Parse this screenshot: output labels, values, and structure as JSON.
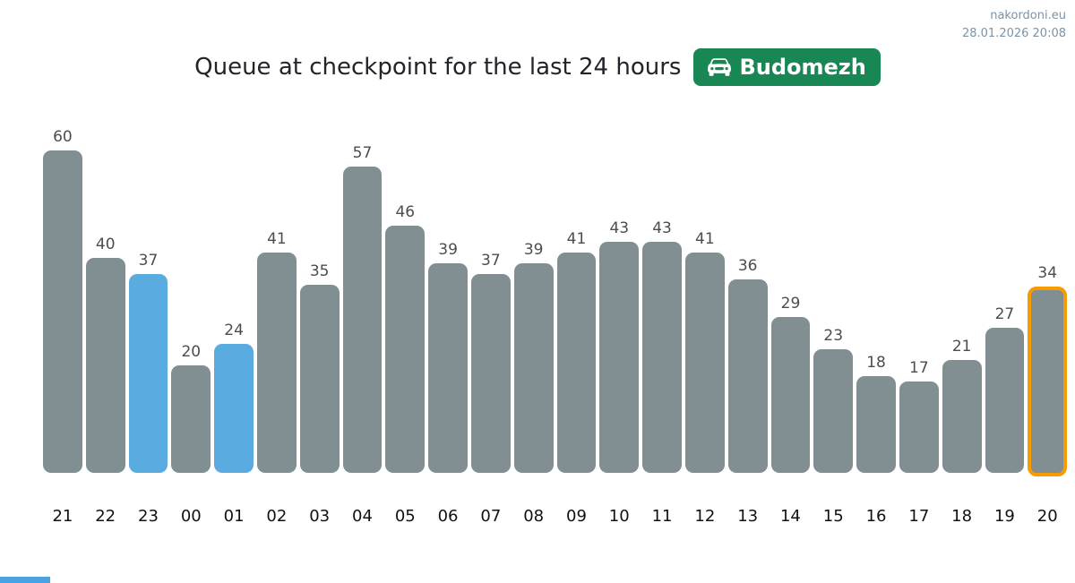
{
  "watermark": {
    "site": "nakordoni.eu",
    "timestamp": "28.01.2026 20:08"
  },
  "header": {
    "title": "Queue at checkpoint for the last 24 hours",
    "badge_label": "Budomezh",
    "badge_icon": "car-front-icon"
  },
  "colors": {
    "bar_default": "#818f93",
    "bar_highlight": "#5aabe0",
    "bar_outline": "#f79c00",
    "badge_green": "#198754",
    "watermark_text": "#7d93a6",
    "value_label": "#4d4d4d",
    "axis_label": "#111111",
    "title_text": "#212529",
    "fragment_blue": "#4aa3e0"
  },
  "chart_data": {
    "type": "bar",
    "title": "Queue at checkpoint for the last 24 hours",
    "checkpoint": "Budomezh",
    "categories": [
      "21",
      "22",
      "23",
      "00",
      "01",
      "02",
      "03",
      "04",
      "05",
      "06",
      "07",
      "08",
      "09",
      "10",
      "11",
      "12",
      "13",
      "14",
      "15",
      "16",
      "17",
      "18",
      "19",
      "20"
    ],
    "values": [
      60,
      40,
      37,
      20,
      24,
      41,
      35,
      57,
      46,
      39,
      37,
      39,
      41,
      43,
      43,
      41,
      36,
      29,
      23,
      18,
      17,
      21,
      27,
      34
    ],
    "highlighted_hours": [
      "23",
      "01"
    ],
    "outlined_hour": "20",
    "xlabel": "",
    "ylabel": "",
    "ylim": [
      0,
      62
    ],
    "grid": false,
    "legend": false,
    "value_labels": true
  }
}
